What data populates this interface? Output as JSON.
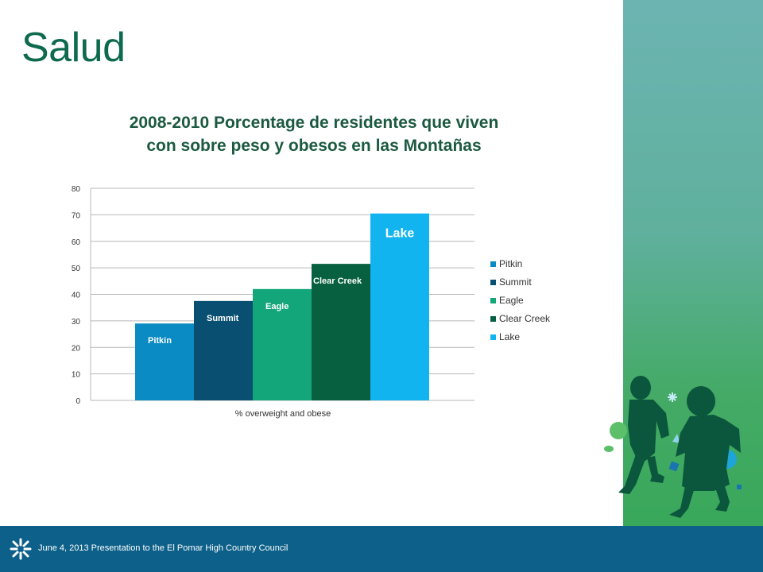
{
  "slide": {
    "title": "Salud",
    "footer": "June 4, 2013 Presentation to  the El Pomar High Country Council"
  },
  "colors": {
    "title": "#0e6a4e",
    "footer_bg": "#0c6089"
  },
  "icons": [
    "burst-logo-icon"
  ],
  "chart_data": {
    "type": "bar",
    "title": "2008-2010 Porcentage de residentes que viven con sobre peso y obesos en las Montañas",
    "xlabel": "% overweight and obese",
    "ylabel": "",
    "ylim": [
      0,
      80
    ],
    "yticks": [
      0,
      10,
      20,
      30,
      40,
      50,
      60,
      70,
      80
    ],
    "grid": true,
    "legend_position": "right",
    "categories": [
      "% overweight and obese"
    ],
    "series": [
      {
        "name": "Pitkin",
        "values": [
          29
        ],
        "color": "#0a8bc3",
        "label": "Pitkin"
      },
      {
        "name": "Summit",
        "values": [
          37.5
        ],
        "color": "#084f72",
        "label": "Summit"
      },
      {
        "name": "Eagle",
        "values": [
          42
        ],
        "color": "#13a67b",
        "label": "Eagle"
      },
      {
        "name": "Clear Creek",
        "values": [
          51.5
        ],
        "color": "#07603f",
        "label": "Clear Creek"
      },
      {
        "name": "Lake",
        "values": [
          70.5
        ],
        "color": "#12b4ef",
        "label": "Lake"
      }
    ]
  }
}
